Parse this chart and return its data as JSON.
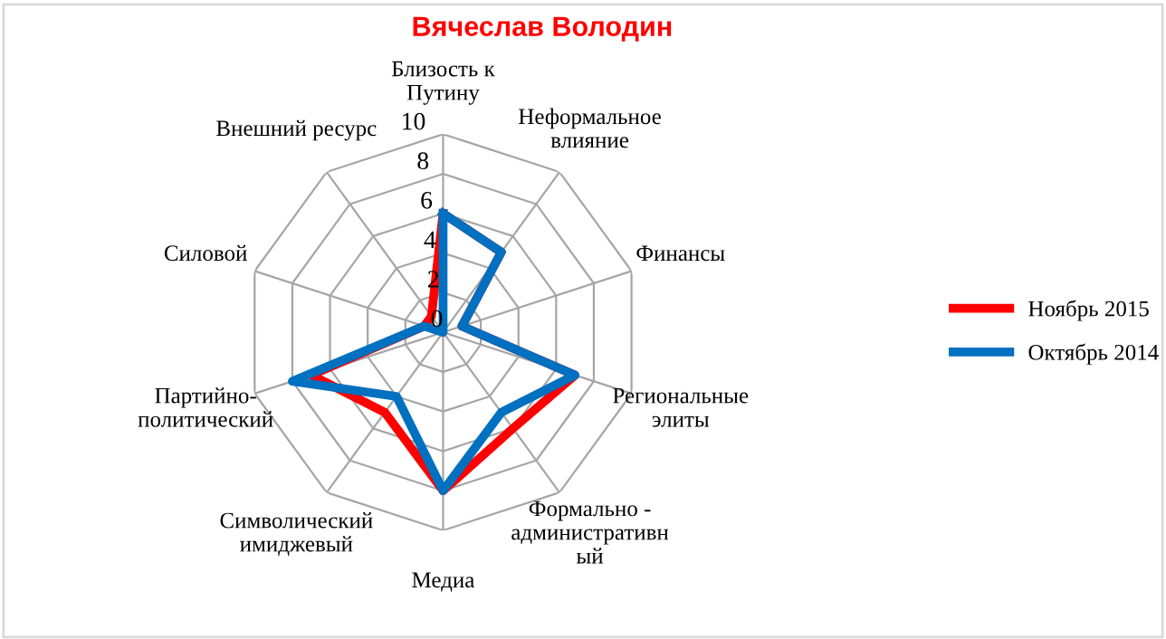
{
  "chart_data": {
    "type": "radar",
    "title": "Вячеслав Володин",
    "categories": [
      "Близость к\nПутину",
      "Неформальное\nвлияние",
      "Финансы",
      "Региональные\nэлиты",
      "Формально -\nадминистративн\nый",
      "Медиа",
      "Символический\nимиджевый",
      "Партийно-\nполитический",
      "Силовой",
      "Внешний ресурс"
    ],
    "series": [
      {
        "name": "Ноябрь 2015",
        "color": "#ff0000",
        "values": [
          6,
          5,
          1,
          7,
          6,
          8,
          5,
          7,
          1,
          1
        ]
      },
      {
        "name": "Октябрь 2014",
        "color": "#0070c0",
        "values": [
          6,
          5,
          1,
          7,
          5,
          8,
          4,
          8,
          1,
          0
        ]
      }
    ],
    "ylim": [
      0,
      10
    ],
    "yticks": [
      0,
      2,
      4,
      6,
      8,
      10
    ],
    "grid": true,
    "legend": "right",
    "marker": "none",
    "line_style": "solid"
  }
}
